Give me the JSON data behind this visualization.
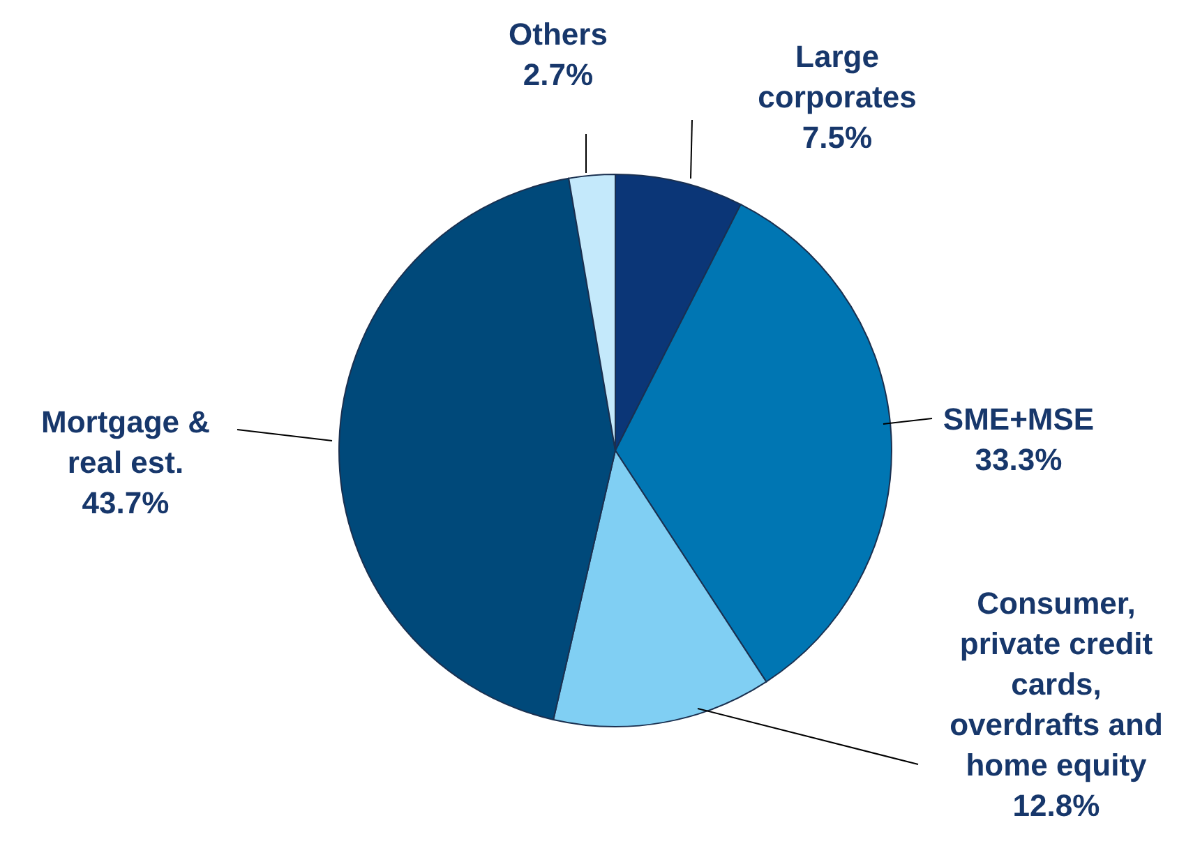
{
  "chart_data": {
    "type": "pie",
    "categories": [
      "Large corporates",
      "SME+MSE",
      "Consumer, private credit cards, overdrafts and home equity",
      "Mortgage & real est.",
      "Others"
    ],
    "values": [
      7.5,
      33.3,
      12.8,
      43.7,
      2.7
    ],
    "colors": [
      "#0b3677",
      "#0076b3",
      "#80cff3",
      "#00497a",
      "#c4e9fb"
    ],
    "value_labels": [
      "7.5%",
      "33.3%",
      "12.8%",
      "43.7%",
      "2.7%"
    ]
  }
}
